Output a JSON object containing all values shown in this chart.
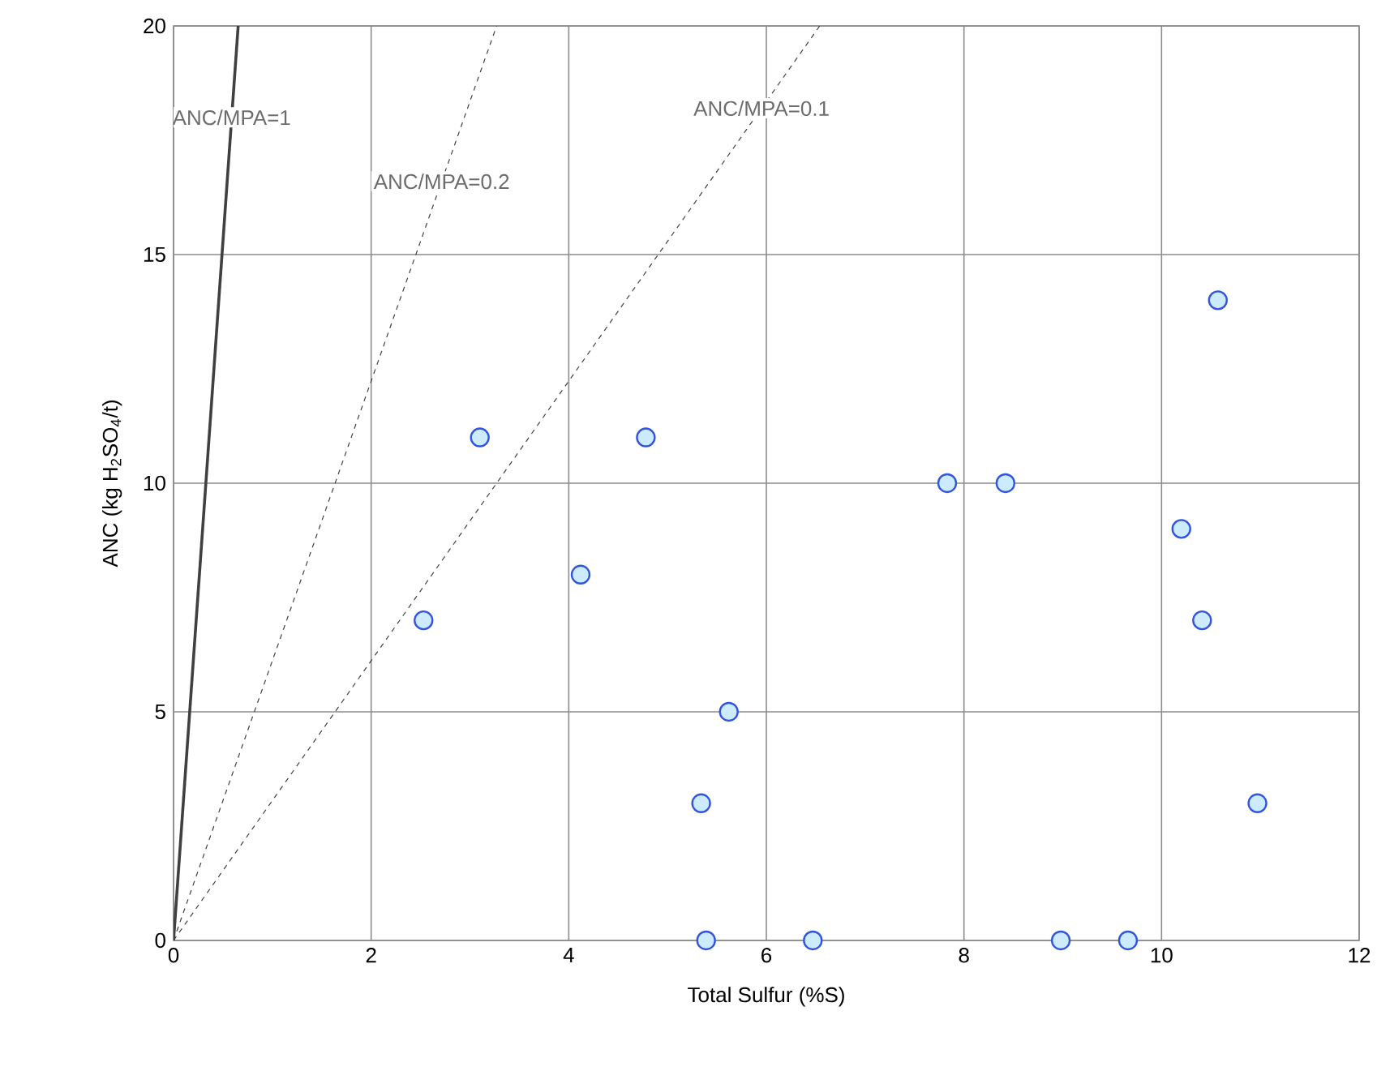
{
  "chart_data": {
    "type": "scatter",
    "xlabel": "Total Sulfur (%S)",
    "ylabel": "ANC (kg H$_{2}$SO$_{4}$/t)",
    "xlim": [
      0,
      12
    ],
    "ylim": [
      0,
      20
    ],
    "xticks": [
      0,
      2,
      4,
      6,
      8,
      10,
      12
    ],
    "yticks": [
      0,
      5,
      10,
      15,
      20
    ],
    "grid": true,
    "marker": "circle",
    "series": [
      {
        "color": "#3355dd",
        "x": [
          2.53,
          3.1,
          4.12,
          4.78,
          5.34,
          5.39,
          5.62,
          6.47,
          7.83,
          8.42,
          8.98,
          9.66,
          10.2,
          10.41,
          10.57,
          10.97
        ],
        "values": [
          7,
          11,
          8,
          11,
          3,
          0,
          5,
          0,
          10,
          10,
          0,
          0,
          9,
          7,
          14,
          3
        ]
      },
      {
        "type": "line",
        "name": "ANC/MPA=1",
        "marker": "none",
        "color": "#404040",
        "line_style": "solid",
        "x": [
          0,
          0.654
        ],
        "values": [
          0,
          20
        ]
      },
      {
        "type": "line",
        "name": "ANC/MPA=0.2",
        "marker": "none",
        "color": "#404040",
        "line_style": "dashed",
        "x": [
          0,
          3.27
        ],
        "values": [
          0,
          20
        ]
      },
      {
        "type": "line",
        "name": "ANC/MPA=0.1",
        "marker": "none",
        "color": "#404040",
        "line_style": "dashed",
        "x": [
          0,
          6.54
        ],
        "values": [
          0,
          20
        ]
      }
    ]
  }
}
